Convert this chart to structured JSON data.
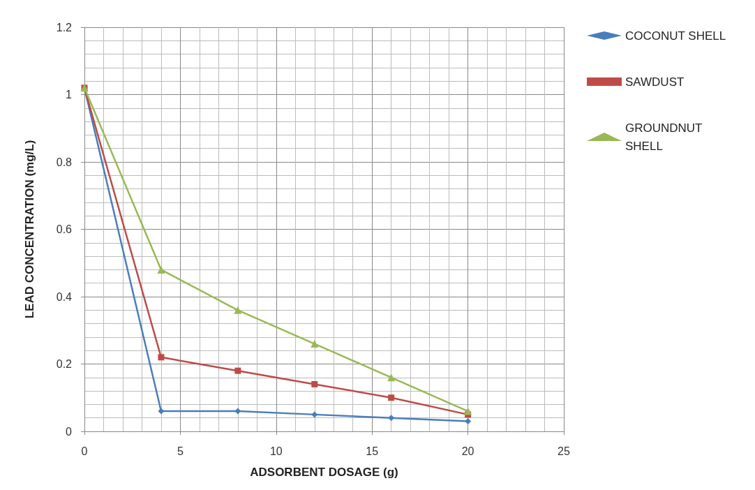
{
  "chart_data": {
    "type": "line",
    "xlabel": "ADSORBENT DOSAGE (g)",
    "ylabel": "LEAD CONCENTRATION (mg/L)",
    "x": [
      0,
      4,
      8,
      12,
      16,
      20
    ],
    "series": [
      {
        "name": "COCONUT SHELL",
        "color": "#4a7ebb",
        "marker": "diamond",
        "values": [
          1.02,
          0.06,
          0.06,
          0.05,
          0.04,
          0.03
        ]
      },
      {
        "name": "SAWDUST",
        "color": "#be4b48",
        "marker": "square",
        "values": [
          1.02,
          0.22,
          0.18,
          0.14,
          0.1,
          0.05
        ]
      },
      {
        "name": "GROUNDNUT SHELL",
        "color": "#98b954",
        "marker": "triangle",
        "values": [
          1.02,
          0.48,
          0.36,
          0.26,
          0.16,
          0.06
        ]
      }
    ],
    "xlim": [
      0,
      25
    ],
    "xticks": [
      0,
      5,
      10,
      15,
      20,
      25
    ],
    "ylim": [
      0,
      1.2
    ],
    "yticks": [
      0,
      0.2,
      0.4,
      0.6,
      0.8,
      1,
      1.2
    ],
    "grid": true,
    "legend": "right",
    "line_style": "solid"
  }
}
